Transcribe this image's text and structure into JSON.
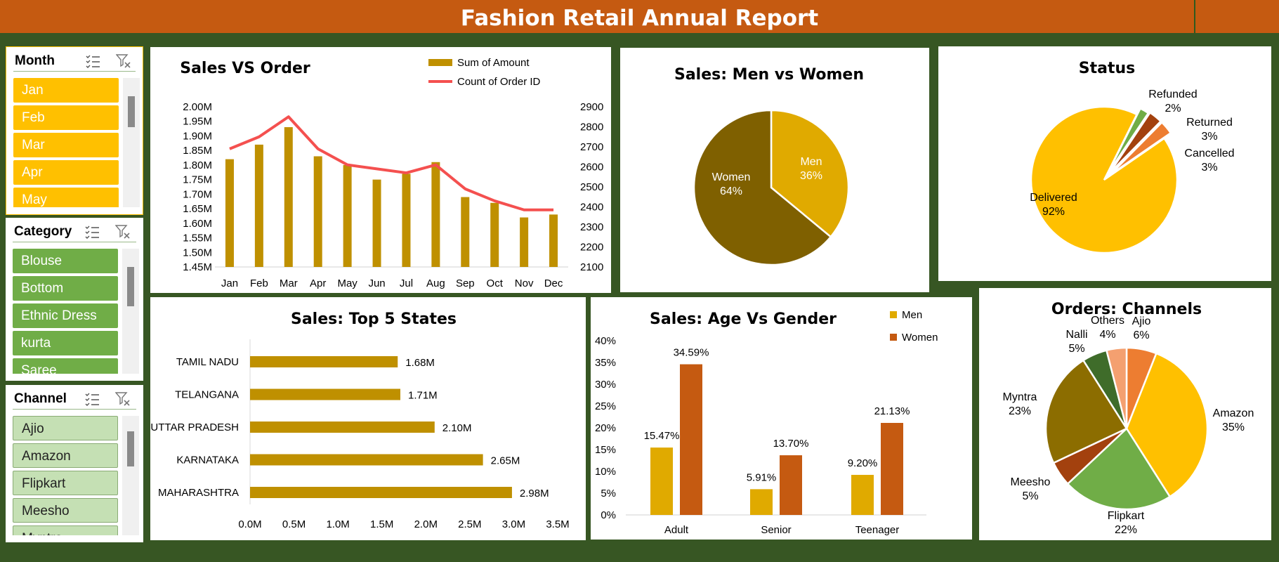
{
  "header": {
    "title": "Fashion Retail Annual Report"
  },
  "colors": {
    "header_bg": "#c55a11",
    "background": "#375623",
    "gold": "#bf9000",
    "red_line": "#f4504f",
    "month_item": "#ffc000",
    "category_item": "#70ad47",
    "channel_item": "#c5e0b4"
  },
  "slicers": {
    "month": {
      "title": "Month",
      "items": [
        "Jan",
        "Feb",
        "Mar",
        "Apr",
        "May"
      ]
    },
    "category": {
      "title": "Category",
      "items": [
        "Blouse",
        "Bottom",
        "Ethnic Dress",
        "kurta",
        "Saree"
      ]
    },
    "channel": {
      "title": "Channel",
      "items": [
        "Ajio",
        "Amazon",
        "Flipkart",
        "Meesho",
        "Myntra"
      ]
    },
    "icons": [
      "multi-select-icon",
      "clear-filter-icon"
    ]
  },
  "chart_data": [
    {
      "id": "sales_vs_order",
      "type": "bar",
      "title": "Sales VS Order",
      "categories": [
        "Jan",
        "Feb",
        "Mar",
        "Apr",
        "May",
        "Jun",
        "Jul",
        "Aug",
        "Sep",
        "Oct",
        "Nov",
        "Dec"
      ],
      "series": [
        {
          "name": "Sum of Amount",
          "type": "bar",
          "axis": "left",
          "color": "#bf9000",
          "values": [
            1.82,
            1.87,
            1.93,
            1.83,
            1.8,
            1.75,
            1.77,
            1.81,
            1.69,
            1.67,
            1.62,
            1.63
          ]
        },
        {
          "name": "Count of Order ID",
          "type": "line",
          "axis": "right",
          "color": "#f4504f",
          "values": [
            2690,
            2750,
            2850,
            2690,
            2610,
            2590,
            2570,
            2610,
            2490,
            2430,
            2385,
            2385
          ]
        }
      ],
      "left_ticks": [
        "1.45M",
        "1.50M",
        "1.55M",
        "1.60M",
        "1.65M",
        "1.70M",
        "1.75M",
        "1.80M",
        "1.85M",
        "1.90M",
        "1.95M",
        "2.00M"
      ],
      "right_ticks": [
        "2100",
        "2200",
        "2300",
        "2400",
        "2500",
        "2600",
        "2700",
        "2800",
        "2900"
      ],
      "ylim": [
        1.45,
        2.0
      ],
      "y2lim": [
        2100,
        2900
      ]
    },
    {
      "id": "men_vs_women",
      "type": "pie",
      "title": "Sales: Men vs Women",
      "slices": [
        {
          "label": "Men",
          "value": 36,
          "pct": "36%",
          "color": "#e0aa00"
        },
        {
          "label": "Women",
          "value": 64,
          "pct": "64%",
          "color": "#7f6000"
        }
      ]
    },
    {
      "id": "status",
      "type": "pie",
      "title": "Status",
      "slices": [
        {
          "label": "Delivered",
          "value": 92,
          "pct": "92%",
          "color": "#ffc000"
        },
        {
          "label": "Refunded",
          "value": 2,
          "pct": "2%",
          "color": "#70ad47"
        },
        {
          "label": "Returned",
          "value": 3,
          "pct": "3%",
          "color": "#a3410e"
        },
        {
          "label": "Cancelled",
          "value": 3,
          "pct": "3%",
          "color": "#ed7d31"
        }
      ]
    },
    {
      "id": "top_states",
      "type": "bar",
      "orientation": "horizontal",
      "title": "Sales: Top 5 States",
      "categories": [
        "TAMIL NADU",
        "TELANGANA",
        "UTTAR PRADESH",
        "KARNATAKA",
        "MAHARASHTRA"
      ],
      "values": [
        1.68,
        1.71,
        2.1,
        2.65,
        2.98
      ],
      "labels": [
        "1.68M",
        "1.71M",
        "2.10M",
        "2.65M",
        "2.98M"
      ],
      "ticks": [
        "0.0M",
        "0.5M",
        "1.0M",
        "1.5M",
        "2.0M",
        "2.5M",
        "3.0M",
        "3.5M"
      ],
      "xlim": [
        0,
        3.5
      ],
      "color": "#bf9000"
    },
    {
      "id": "age_vs_gender",
      "type": "bar",
      "title": "Sales: Age Vs Gender",
      "categories": [
        "Adult",
        "Senior",
        "Teenager"
      ],
      "series": [
        {
          "name": "Men",
          "color": "#e0aa00",
          "values": [
            15.47,
            5.91,
            9.2
          ],
          "labels": [
            "15.47%",
            "5.91%",
            "9.20%"
          ]
        },
        {
          "name": "Women",
          "color": "#c55a11",
          "values": [
            34.59,
            13.7,
            21.13
          ],
          "labels": [
            "34.59%",
            "13.70%",
            "21.13%"
          ]
        }
      ],
      "ticks": [
        "0%",
        "5%",
        "10%",
        "15%",
        "20%",
        "25%",
        "30%",
        "35%",
        "40%"
      ],
      "ylim": [
        0,
        40
      ]
    },
    {
      "id": "channels",
      "type": "pie",
      "title": "Orders: Channels",
      "slices": [
        {
          "label": "Ajio",
          "value": 6,
          "pct": "6%",
          "color": "#ed7d31"
        },
        {
          "label": "Amazon",
          "value": 35,
          "pct": "35%",
          "color": "#ffc000"
        },
        {
          "label": "Flipkart",
          "value": 22,
          "pct": "22%",
          "color": "#70ad47"
        },
        {
          "label": "Meesho",
          "value": 5,
          "pct": "5%",
          "color": "#a3410e"
        },
        {
          "label": "Myntra",
          "value": 23,
          "pct": "23%",
          "color": "#8c6d00"
        },
        {
          "label": "Nalli",
          "value": 5,
          "pct": "5%",
          "color": "#3f6c2a"
        },
        {
          "label": "Others",
          "value": 4,
          "pct": "4%",
          "color": "#f4a070"
        }
      ]
    }
  ]
}
